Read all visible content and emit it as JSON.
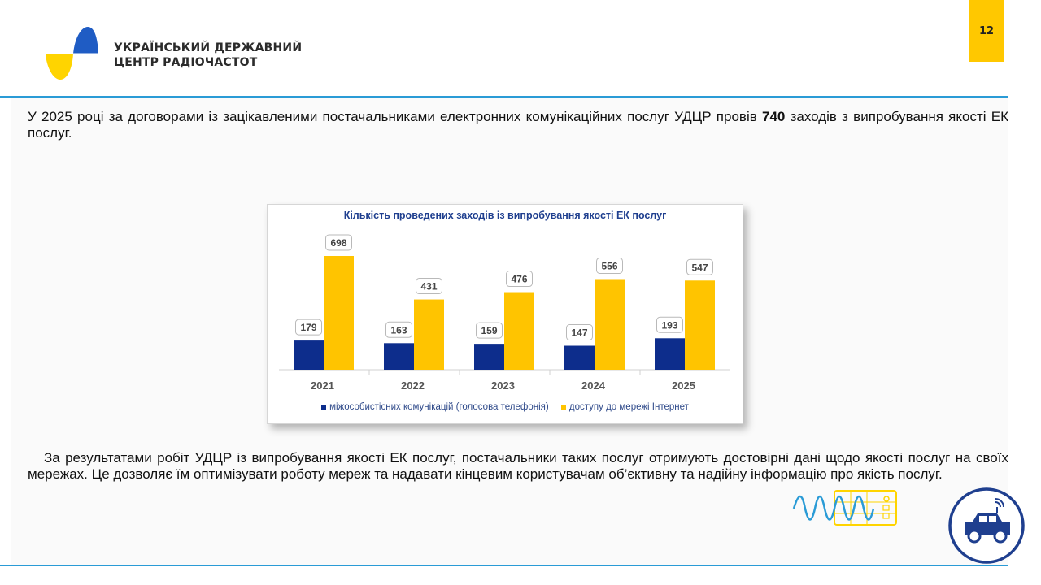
{
  "header": {
    "org_line1": "УКРАЇНСЬКИЙ ДЕРЖАВНИЙ",
    "org_line2": "ЦЕНТР РАДІОЧАСТОТ",
    "page_number": "12"
  },
  "intro": {
    "before": "У 2025 році за договорами із зацікавленими постачальниками електронних комунікаційних послуг УДЦР провів ",
    "bold_number": "740",
    "after": " заходів з випробування якості ЕК послуг."
  },
  "chart_data": {
    "type": "bar",
    "title": "Кількість проведених заходів із випробування якості ЕК послуг",
    "categories": [
      "2021",
      "2022",
      "2023",
      "2024",
      "2025"
    ],
    "series": [
      {
        "name": "міжособистісних комунікацій (голосова телефонія)",
        "color": "#0d2d8c",
        "values": [
          179,
          163,
          159,
          147,
          193
        ]
      },
      {
        "name": "доступу до мережі Інтернет",
        "color": "#ffc400",
        "values": [
          698,
          431,
          476,
          556,
          547
        ]
      }
    ],
    "ylim": [
      0,
      800
    ],
    "grid": false,
    "legend": "bottom"
  },
  "conclusion": {
    "text": "За результатами робіт УДЦР із випробування якості ЕК послуг, постачальники таких послуг отримують достовірні дані щодо якості послуг на своїх мережах. Це дозволяє їм оптимізувати роботу мереж та надавати кінцевим користувачам об’єктивну та надійну інформацію про якість послуг."
  },
  "colors": {
    "accent_blue": "#2a9bd6",
    "brand_yellow": "#ffc800",
    "navy": "#1f4e9c"
  },
  "icons": [
    "udcr-logo-icon",
    "signal-wave-icon",
    "measurement-car-icon"
  ]
}
